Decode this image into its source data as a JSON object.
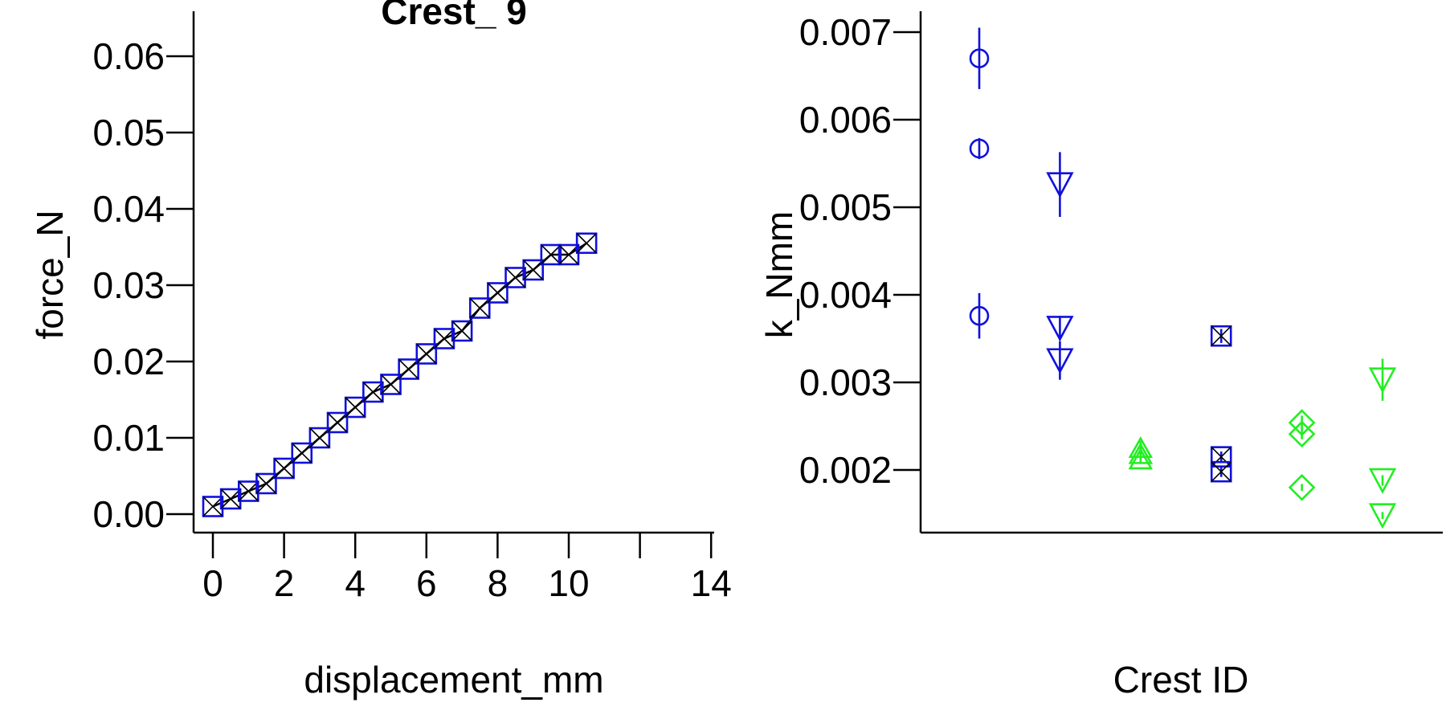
{
  "chart_data": [
    {
      "type": "line",
      "title": "Crest_ 9",
      "xlabel": "displacement_mm",
      "ylabel": "force_N",
      "xlim": [
        -0.5,
        14
      ],
      "ylim": [
        -0.0025,
        0.0655
      ],
      "x_ticks": [
        0,
        2,
        4,
        6,
        8,
        10,
        12,
        14
      ],
      "x_tick_labels": [
        "0",
        "2",
        "4",
        "6",
        "8",
        "10",
        "",
        "14"
      ],
      "y_ticks": [
        0.0,
        0.01,
        0.02,
        0.03,
        0.04,
        0.05,
        0.06
      ],
      "y_tick_labels": [
        "0.00",
        "0.01",
        "0.02",
        "0.03",
        "0.04",
        "0.05",
        "0.06"
      ],
      "grid": false,
      "series": [
        {
          "color": "#1010dd",
          "marker": "square-x",
          "x": [
            0,
            0.5,
            1,
            1.5,
            2,
            2.5,
            3,
            3.5,
            4,
            4.5,
            5,
            5.5,
            6,
            6.5,
            7,
            7.5,
            8,
            8.5,
            9,
            9.5,
            10,
            10.5
          ],
          "y": [
            0.001,
            0.002,
            0.003,
            0.004,
            0.006,
            0.008,
            0.01,
            0.012,
            0.014,
            0.016,
            0.017,
            0.019,
            0.021,
            0.023,
            0.024,
            0.027,
            0.029,
            0.031,
            0.032,
            0.034,
            0.034,
            0.0355
          ]
        }
      ]
    },
    {
      "type": "scatter",
      "title": "",
      "xlabel": "Crest ID",
      "ylabel": "k_Nmm",
      "xlim": [
        0.3,
        6.8
      ],
      "ylim": [
        0.00128,
        0.00725
      ],
      "y_ticks": [
        0.002,
        0.003,
        0.004,
        0.005,
        0.006,
        0.007
      ],
      "y_tick_labels": [
        "0.002",
        "0.003",
        "0.004",
        "0.005",
        "0.006",
        "0.007"
      ],
      "grid": false,
      "series": [
        {
          "color": "#1010dd",
          "marker": "circle",
          "points": [
            {
              "x": 1,
              "y": 0.0067,
              "err": 0.00035
            },
            {
              "x": 1,
              "y": 0.00567,
              "err": 0.00012
            },
            {
              "x": 1,
              "y": 0.00376,
              "err": 0.00026
            }
          ]
        },
        {
          "color": "#1010dd",
          "marker": "triangle-down",
          "points": [
            {
              "x": 2,
              "y": 0.00526,
              "err": 0.00037
            },
            {
              "x": 2,
              "y": 0.00362,
              "err": 0.00014
            },
            {
              "x": 2,
              "y": 0.00325,
              "err": 0.00022
            }
          ]
        },
        {
          "color": "#22ee22",
          "marker": "triangle-up",
          "points": [
            {
              "x": 3,
              "y": 0.00225,
              "err": 8e-05
            },
            {
              "x": 3,
              "y": 0.00218,
              "err": 8e-05
            },
            {
              "x": 3,
              "y": 0.00212,
              "err": 5e-05
            }
          ]
        },
        {
          "color": "#1010dd",
          "marker": "square-x",
          "points": [
            {
              "x": 4,
              "y": 0.00353,
              "err": 8e-05
            },
            {
              "x": 4,
              "y": 0.00215,
              "err": 6e-05
            },
            {
              "x": 4,
              "y": 0.00198,
              "err": 6e-05
            }
          ]
        },
        {
          "color": "#22ee22",
          "marker": "diamond",
          "points": [
            {
              "x": 5,
              "y": 0.00254,
              "err": 8e-05
            },
            {
              "x": 5,
              "y": 0.00241,
              "err": 6e-05
            },
            {
              "x": 5,
              "y": 0.0018,
              "err": 4e-05
            }
          ]
        },
        {
          "color": "#22ee22",
          "marker": "triangle-down",
          "points": [
            {
              "x": 6,
              "y": 0.00303,
              "err": 0.00024
            },
            {
              "x": 6,
              "y": 0.00188,
              "err": 6e-05
            },
            {
              "x": 6,
              "y": 0.00148,
              "err": 4e-05
            }
          ]
        }
      ]
    }
  ]
}
